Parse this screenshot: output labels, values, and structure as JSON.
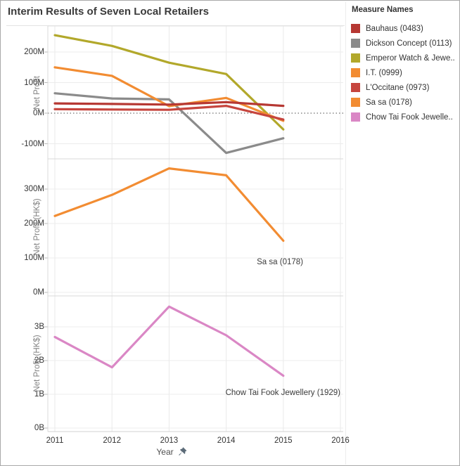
{
  "title": "Interim Results of Seven Local Retailers",
  "legend": {
    "title": "Measure Names",
    "items": [
      {
        "label": "Bauhaus (0483)",
        "color": "#b63833"
      },
      {
        "label": "Dickson Concept (0113)",
        "color": "#8b8b8b"
      },
      {
        "label": "Emperor Watch & Jewe..",
        "color": "#b2a82b"
      },
      {
        "label": "I.T. (0999)",
        "color": "#f28c32"
      },
      {
        "label": "L'Occitane (0973)",
        "color": "#c6453e"
      },
      {
        "label": "Sa sa (0178)",
        "color": "#f28c32"
      },
      {
        "label": "Chow Tai Fook Jewelle..",
        "color": "#da87c5"
      }
    ]
  },
  "x_axis": {
    "title": "Year",
    "ticks": [
      "2011",
      "2012",
      "2013",
      "2014",
      "2015",
      "2016"
    ]
  },
  "annotations": {
    "sasa": "Sa sa (0178)",
    "chow": "Chow Tai Fook Jewellery (1929)"
  },
  "chart_data": [
    {
      "type": "line",
      "panel": "top",
      "ylabel": "Net Profit",
      "x": [
        2011,
        2012,
        2013,
        2014,
        2015
      ],
      "x_ticks_shown": [
        2011,
        2012,
        2013,
        2014,
        2015,
        2016
      ],
      "ylim": [
        -150,
        280
      ],
      "unit": "millions HK$",
      "grid": true,
      "zero_line_dotted": true,
      "yticks": [
        {
          "value": 200,
          "label": "200M"
        },
        {
          "value": 100,
          "label": "100M"
        },
        {
          "value": 0,
          "label": "0M"
        },
        {
          "value": -100,
          "label": "-100M"
        }
      ],
      "series": [
        {
          "name": "Dickson Concept (0113)",
          "color": "#8b8b8b",
          "values": [
            65,
            48,
            45,
            -130,
            -82
          ]
        },
        {
          "name": "Emperor Watch & Jewe..",
          "color": "#b2a82b",
          "values": [
            255,
            220,
            165,
            128,
            -53
          ]
        },
        {
          "name": "I.T. (0999)",
          "color": "#f28c32",
          "values": [
            150,
            122,
            23,
            50,
            -25
          ]
        },
        {
          "name": "Bauhaus (0483)",
          "color": "#b63833",
          "values": [
            32,
            30,
            28,
            36,
            24
          ]
        },
        {
          "name": "L'Occitane (0973)",
          "color": "#c6453e",
          "values": [
            13,
            12,
            11,
            24,
            -21
          ]
        }
      ]
    },
    {
      "type": "line",
      "panel": "mid",
      "ylabel": "Net Profit (HK$)",
      "x": [
        2011,
        2012,
        2013,
        2014,
        2015
      ],
      "ylim": [
        -10,
        390
      ],
      "unit": "millions HK$",
      "grid": true,
      "zero_line_dotted": false,
      "yticks": [
        {
          "value": 300,
          "label": "300M"
        },
        {
          "value": 200,
          "label": "200M"
        },
        {
          "value": 100,
          "label": "100M"
        },
        {
          "value": 0,
          "label": "0M"
        }
      ],
      "series": [
        {
          "name": "Sa sa (0178)",
          "color": "#f28c32",
          "values": [
            222,
            283,
            360,
            340,
            150
          ]
        }
      ]
    },
    {
      "type": "line",
      "panel": "bot",
      "ylabel": "Net Profit (HK$)",
      "x": [
        2011,
        2012,
        2013,
        2014,
        2015
      ],
      "ylim": [
        -0.1,
        3.75
      ],
      "unit": "billions HK$",
      "grid": true,
      "zero_line_dotted": false,
      "yticks": [
        {
          "value": 3,
          "label": "3B"
        },
        {
          "value": 2,
          "label": "2B"
        },
        {
          "value": 1,
          "label": "1B"
        },
        {
          "value": 0,
          "label": "0B"
        }
      ],
      "series": [
        {
          "name": "Chow Tai Fook Jewellery (1929)",
          "color": "#da87c5",
          "values": [
            2.7,
            1.8,
            3.6,
            2.75,
            1.55
          ]
        }
      ]
    }
  ]
}
